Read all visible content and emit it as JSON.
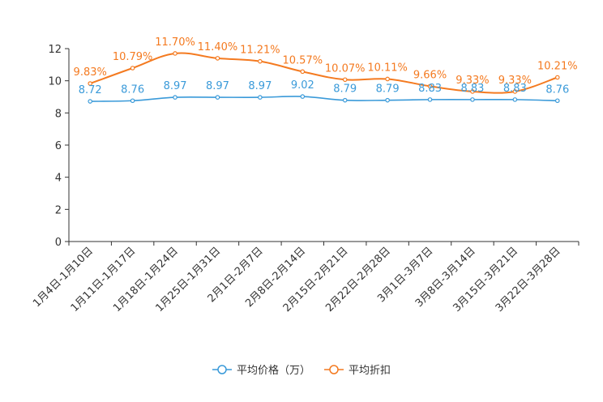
{
  "chart_data": {
    "type": "line",
    "title": "",
    "xlabel": "",
    "ylabel": "",
    "ylim": [
      0,
      12
    ],
    "yticks": [
      0,
      2,
      4,
      6,
      8,
      10,
      12
    ],
    "grid": false,
    "legend_position": "bottom",
    "categories": [
      "1月4日-1月10日",
      "1月11日-1月17日",
      "1月18日-1月24日",
      "1月25日-1月31日",
      "2月1日-2月7日",
      "2月8日-2月14日",
      "2月15日-2月21日",
      "2月22日-2月28日",
      "3月1日-3月7日",
      "3月8日-3月14日",
      "3月15日-3月21日",
      "3月22日-3月28日"
    ],
    "series": [
      {
        "name": "平均价格（万）",
        "color": "#3a9ad9",
        "values": [
          8.72,
          8.76,
          8.97,
          8.97,
          8.97,
          9.02,
          8.79,
          8.79,
          8.83,
          8.83,
          8.83,
          8.76
        ],
        "labels": [
          "8.72",
          "8.76",
          "8.97",
          "8.97",
          "8.97",
          "9.02",
          "8.79",
          "8.79",
          "8.83",
          "8.83",
          "8.83",
          "8.76"
        ]
      },
      {
        "name": "平均折扣",
        "color": "#f47a20",
        "values": [
          9.83,
          10.79,
          11.7,
          11.4,
          11.21,
          10.57,
          10.07,
          10.11,
          9.66,
          9.33,
          9.33,
          10.21
        ],
        "labels": [
          "9.83%",
          "10.79%",
          "11.70%",
          "11.40%",
          "11.21%",
          "10.57%",
          "10.07%",
          "10.11%",
          "9.66%",
          "9.33%",
          "9.33%",
          "10.21%"
        ]
      }
    ]
  }
}
